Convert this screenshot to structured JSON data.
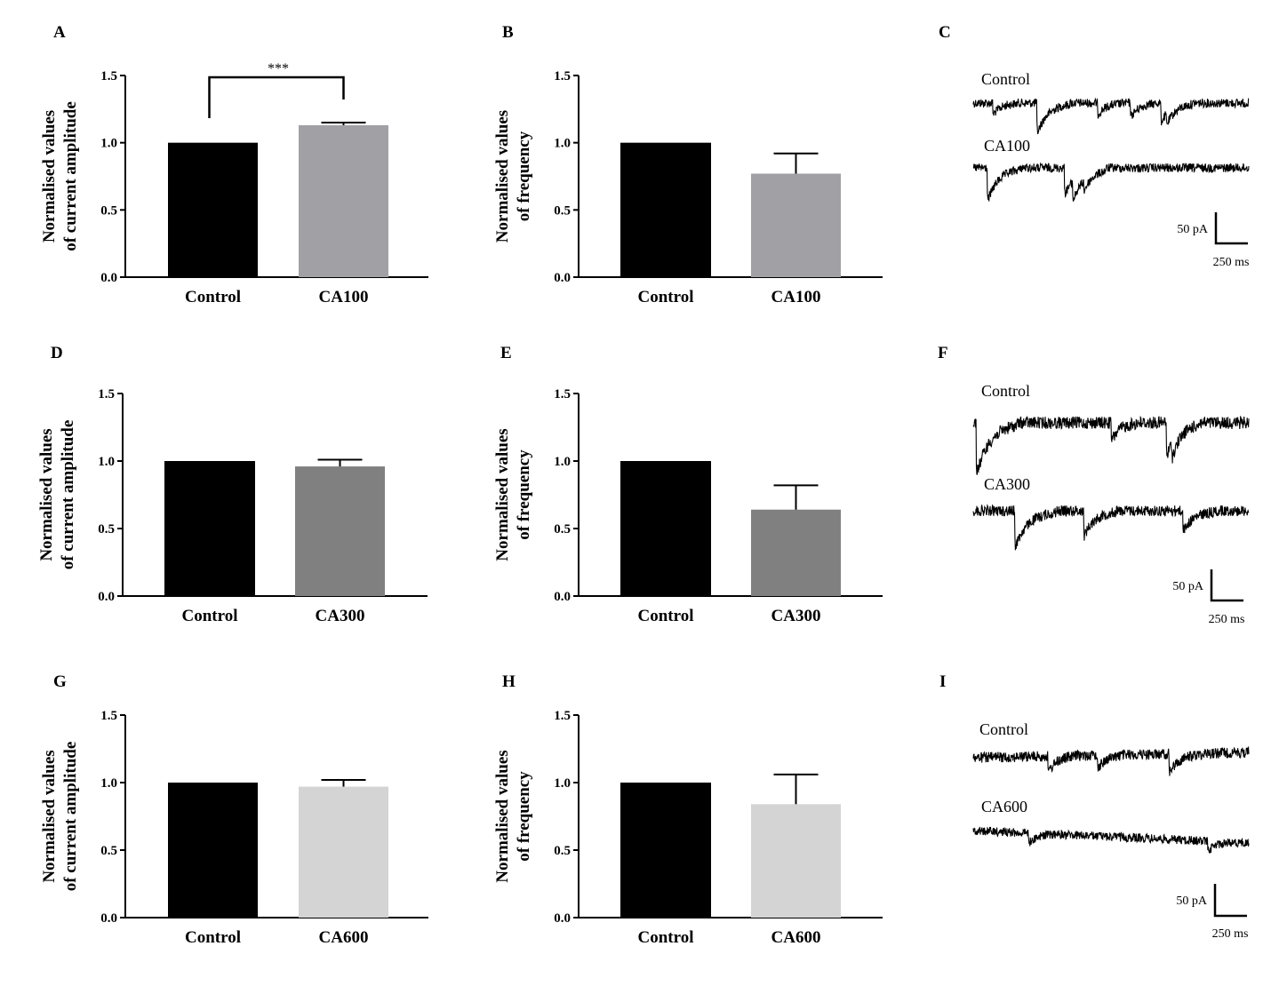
{
  "chart_data": [
    {
      "panel": "A",
      "type": "bar",
      "ylabel": [
        "Normalised values",
        "of current amplitude"
      ],
      "ylim": [
        0,
        1.5
      ],
      "yticks": [
        "0.0",
        "0.5",
        "1.0",
        "1.5"
      ],
      "categories": [
        "Control",
        "CA100"
      ],
      "values": [
        1.0,
        1.13
      ],
      "error": [
        0,
        0.02
      ],
      "colors": [
        "#000000",
        "#a1a1a5"
      ],
      "significance": "***"
    },
    {
      "panel": "B",
      "type": "bar",
      "ylabel": [
        "Normalised values",
        "of frequency"
      ],
      "ylim": [
        0,
        1.5
      ],
      "yticks": [
        "0.0",
        "0.5",
        "1.0",
        "1.5"
      ],
      "categories": [
        "Control",
        "CA100"
      ],
      "values": [
        1.0,
        0.77
      ],
      "error": [
        0,
        0.15
      ],
      "colors": [
        "#000000",
        "#a1a1a5"
      ]
    },
    {
      "panel": "D",
      "type": "bar",
      "ylabel": [
        "Normalised values",
        "of current amplitude"
      ],
      "ylim": [
        0,
        1.5
      ],
      "yticks": [
        "0.0",
        "0.5",
        "1.0",
        "1.5"
      ],
      "categories": [
        "Control",
        "CA300"
      ],
      "values": [
        1.0,
        0.96
      ],
      "error": [
        0,
        0.05
      ],
      "colors": [
        "#000000",
        "#808080"
      ]
    },
    {
      "panel": "E",
      "type": "bar",
      "ylabel": [
        "Normalised values",
        "of frequency"
      ],
      "ylim": [
        0,
        1.5
      ],
      "yticks": [
        "0.0",
        "0.5",
        "1.0",
        "1.5"
      ],
      "categories": [
        "Control",
        "CA300"
      ],
      "values": [
        1.0,
        0.64
      ],
      "error": [
        0,
        0.18
      ],
      "colors": [
        "#000000",
        "#808080"
      ]
    },
    {
      "panel": "G",
      "type": "bar",
      "ylabel": [
        "Normalised values",
        "of current amplitude"
      ],
      "ylim": [
        0,
        1.5
      ],
      "yticks": [
        "0.0",
        "0.5",
        "1.0",
        "1.5"
      ],
      "categories": [
        "Control",
        "CA600"
      ],
      "values": [
        1.0,
        0.97
      ],
      "error": [
        0,
        0.05
      ],
      "colors": [
        "#000000",
        "#d4d4d4"
      ]
    },
    {
      "panel": "H",
      "type": "bar",
      "ylabel": [
        "Normalised values",
        "of frequency"
      ],
      "ylim": [
        0,
        1.5
      ],
      "yticks": [
        "0.0",
        "0.5",
        "1.0",
        "1.5"
      ],
      "categories": [
        "Control",
        "CA600"
      ],
      "values": [
        1.0,
        0.84
      ],
      "error": [
        0,
        0.22
      ],
      "colors": [
        "#000000",
        "#d4d4d4"
      ]
    }
  ],
  "traces": [
    {
      "panel": "C",
      "labels": [
        "Control",
        "CA100"
      ],
      "scale_current": "50 pA",
      "scale_time": "250 ms"
    },
    {
      "panel": "F",
      "labels": [
        "Control",
        "CA300"
      ],
      "scale_current": "50 pA",
      "scale_time": "250 ms"
    },
    {
      "panel": "I",
      "labels": [
        "Control",
        "CA600"
      ],
      "scale_current": "50 pA",
      "scale_time": "250 ms"
    }
  ]
}
